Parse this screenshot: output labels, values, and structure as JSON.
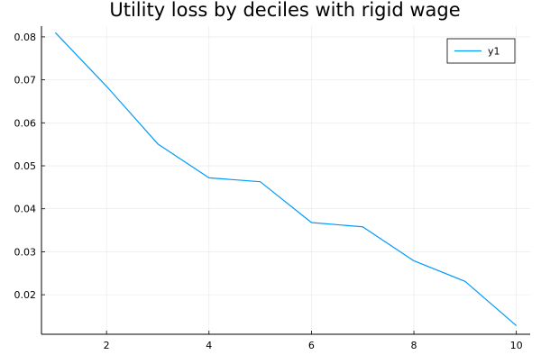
{
  "chart_data": {
    "type": "line",
    "title": "Utility loss by deciles with rigid wage",
    "xlabel": "",
    "ylabel": "",
    "xlim": [
      0.73,
      10.27
    ],
    "ylim": [
      0.0108,
      0.0825
    ],
    "x_ticks": [
      2,
      4,
      6,
      8,
      10
    ],
    "y_ticks": [
      0.02,
      0.03,
      0.04,
      0.05,
      0.06,
      0.07,
      0.08
    ],
    "x_tick_labels": [
      "2",
      "4",
      "6",
      "8",
      "10"
    ],
    "y_tick_labels": [
      "0.02",
      "0.03",
      "0.04",
      "0.05",
      "0.06",
      "0.07",
      "0.08"
    ],
    "grid": true,
    "legend": {
      "show": true,
      "position": "top-right"
    },
    "series": [
      {
        "name": "y1",
        "color": "#009AFA",
        "x": [
          1,
          2,
          3,
          4,
          5,
          6,
          7,
          8,
          9,
          10
        ],
        "y": [
          0.081,
          0.0685,
          0.0551,
          0.0472,
          0.0463,
          0.0368,
          0.0358,
          0.0279,
          0.0231,
          0.0128
        ]
      }
    ]
  }
}
